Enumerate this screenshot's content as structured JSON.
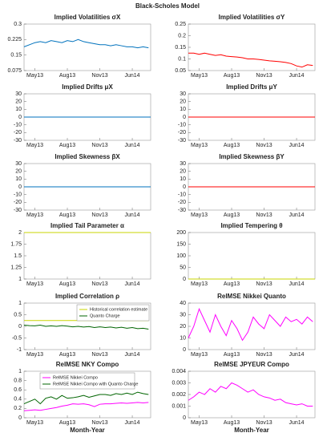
{
  "title": "Black-Scholes Model",
  "chart_data": [
    {
      "type": "line",
      "title": "Implied Volatilities σX",
      "x": [
        0,
        0.5,
        1,
        1.5,
        2,
        2.5,
        3,
        3.5,
        4,
        4.5,
        5,
        5.5,
        6,
        6.5,
        7,
        7.5,
        8,
        8.5,
        9,
        9.5,
        10,
        10.5,
        11,
        11.5
      ],
      "series": [
        {
          "color": "#0072bd",
          "values": [
            0.19,
            0.2,
            0.21,
            0.215,
            0.21,
            0.22,
            0.215,
            0.21,
            0.22,
            0.215,
            0.225,
            0.215,
            0.21,
            0.205,
            0.2,
            0.2,
            0.195,
            0.2,
            0.195,
            0.19,
            0.19,
            0.185,
            0.19,
            0.185
          ]
        }
      ],
      "xlim": [
        0,
        11.7
      ],
      "xticks": [
        {
          "value": 1,
          "label": "May13"
        },
        {
          "value": 4,
          "label": "Aug13"
        },
        {
          "value": 7,
          "label": "Nov13"
        },
        {
          "value": 10,
          "label": "Jun14"
        }
      ],
      "ylim": [
        0.075,
        0.3
      ],
      "yticks": [
        0.075,
        0.15,
        0.225,
        0.3
      ]
    },
    {
      "type": "line",
      "title": "Implied Volatilities σY",
      "x": [
        0,
        0.5,
        1,
        1.5,
        2,
        2.5,
        3,
        3.5,
        4,
        4.5,
        5,
        5.5,
        6,
        6.5,
        7,
        7.5,
        8,
        8.5,
        9,
        9.5,
        10,
        10.5,
        11,
        11.5
      ],
      "series": [
        {
          "color": "#ff0000",
          "values": [
            0.125,
            0.125,
            0.12,
            0.125,
            0.12,
            0.115,
            0.118,
            0.112,
            0.11,
            0.108,
            0.105,
            0.1,
            0.1,
            0.098,
            0.095,
            0.092,
            0.09,
            0.088,
            0.085,
            0.08,
            0.07,
            0.065,
            0.075,
            0.072
          ]
        }
      ],
      "xlim": [
        0,
        11.7
      ],
      "xticks": [
        {
          "value": 1,
          "label": "May13"
        },
        {
          "value": 4,
          "label": "Aug13"
        },
        {
          "value": 7,
          "label": "Nov13"
        },
        {
          "value": 10,
          "label": "Jun14"
        }
      ],
      "ylim": [
        0.05,
        0.25
      ],
      "yticks": [
        0.05,
        0.1,
        0.15,
        0.2,
        0.25
      ]
    },
    {
      "type": "line",
      "title": "Implied Drifts μX",
      "x": [
        0,
        11.7
      ],
      "series": [
        {
          "color": "#0072bd",
          "values": [
            0,
            0
          ]
        }
      ],
      "xlim": [
        0,
        11.7
      ],
      "xticks": [
        {
          "value": 1,
          "label": "May13"
        },
        {
          "value": 4,
          "label": "Aug13"
        },
        {
          "value": 7,
          "label": "Nov13"
        },
        {
          "value": 10,
          "label": "Jun14"
        }
      ],
      "ylim": [
        -30,
        30
      ],
      "yticks": [
        -30,
        -20,
        -10,
        0,
        10,
        20,
        30
      ]
    },
    {
      "type": "line",
      "title": "Implied Drifts μY",
      "x": [
        0,
        11.7
      ],
      "series": [
        {
          "color": "#ff0000",
          "values": [
            0,
            0
          ]
        }
      ],
      "xlim": [
        0,
        11.7
      ],
      "xticks": [
        {
          "value": 1,
          "label": "May13"
        },
        {
          "value": 4,
          "label": "Aug13"
        },
        {
          "value": 7,
          "label": "Nov13"
        },
        {
          "value": 10,
          "label": "Jun14"
        }
      ],
      "ylim": [
        -30,
        30
      ],
      "yticks": [
        -30,
        -20,
        -10,
        0,
        10,
        20,
        30
      ]
    },
    {
      "type": "line",
      "title": "Implied Skewness βX",
      "x": [
        0,
        11.7
      ],
      "series": [
        {
          "color": "#0072bd",
          "values": [
            0,
            0
          ]
        }
      ],
      "xlim": [
        0,
        11.7
      ],
      "xticks": [
        {
          "value": 1,
          "label": "May13"
        },
        {
          "value": 4,
          "label": "Aug13"
        },
        {
          "value": 7,
          "label": "Nov13"
        },
        {
          "value": 10,
          "label": "Jun14"
        }
      ],
      "ylim": [
        -30,
        30
      ],
      "yticks": [
        -30,
        -20,
        -10,
        0,
        10,
        20,
        30
      ]
    },
    {
      "type": "line",
      "title": "Implied Skewness βY",
      "x": [
        0,
        11.7
      ],
      "series": [
        {
          "color": "#ff0000",
          "values": [
            0,
            0
          ]
        }
      ],
      "xlim": [
        0,
        11.7
      ],
      "xticks": [
        {
          "value": 1,
          "label": "May13"
        },
        {
          "value": 4,
          "label": "Aug13"
        },
        {
          "value": 7,
          "label": "Nov13"
        },
        {
          "value": 10,
          "label": "Jun14"
        }
      ],
      "ylim": [
        -30,
        30
      ],
      "yticks": [
        -30,
        -20,
        -10,
        0,
        10,
        20,
        30
      ]
    },
    {
      "type": "line",
      "title": "Implied Tail Parameter α",
      "x": [
        0,
        11.7
      ],
      "series": [
        {
          "color": "#c8d400",
          "values": [
            2,
            2
          ]
        }
      ],
      "xlim": [
        0,
        11.7
      ],
      "xticks": [
        {
          "value": 1,
          "label": "May13"
        },
        {
          "value": 4,
          "label": "Aug13"
        },
        {
          "value": 7,
          "label": "Nov13"
        },
        {
          "value": 10,
          "label": "Jun14"
        }
      ],
      "ylim": [
        1,
        2
      ],
      "yticks": [
        1,
        1.25,
        1.5,
        1.75,
        2
      ]
    },
    {
      "type": "line",
      "title": "Implied Tempering θ",
      "x": [
        0,
        11.7
      ],
      "series": [
        {
          "color": "#c8d400",
          "values": [
            0,
            0
          ]
        }
      ],
      "xlim": [
        0,
        11.7
      ],
      "xticks": [
        {
          "value": 1,
          "label": "May13"
        },
        {
          "value": 4,
          "label": "Aug13"
        },
        {
          "value": 7,
          "label": "Nov13"
        },
        {
          "value": 10,
          "label": "Jun14"
        }
      ],
      "ylim": [
        0,
        200
      ],
      "yticks": [
        0,
        50,
        100,
        150,
        200
      ]
    },
    {
      "type": "line",
      "title": "Implied Correlation ρ",
      "x": [
        0,
        0.5,
        1,
        1.5,
        2,
        2.5,
        3,
        3.5,
        4,
        4.5,
        5,
        5.5,
        6,
        6.5,
        7,
        7.5,
        8,
        8.5,
        9,
        9.5,
        10,
        10.5,
        11,
        11.5
      ],
      "series": [
        {
          "name": "Historical correlation estimate",
          "color": "#c8d400",
          "values": [
            0.25,
            0.25,
            0.25,
            0.25,
            0.25,
            0.25,
            0.25,
            0.25,
            0.25,
            0.25,
            0.25,
            0.25,
            0.25,
            0.25,
            0.25,
            0.25,
            0.25,
            0.25,
            0.25,
            0.25,
            0.25,
            0.25,
            0.25,
            0.25
          ]
        },
        {
          "name": "Quanto Charge",
          "color": "#006400",
          "values": [
            0.05,
            0.03,
            0.02,
            0.05,
            0,
            0.02,
            0,
            0.03,
            0.01,
            -0.02,
            0,
            -0.03,
            -0.01,
            -0.05,
            -0.02,
            -0.05,
            -0.03,
            -0.07,
            -0.04,
            -0.08,
            -0.05,
            -0.1,
            -0.08,
            -0.12
          ]
        }
      ],
      "legend": "upper right",
      "xlim": [
        0,
        11.7
      ],
      "xticks": [
        {
          "value": 1,
          "label": "May13"
        },
        {
          "value": 4,
          "label": "Aug13"
        },
        {
          "value": 7,
          "label": "Nov13"
        },
        {
          "value": 10,
          "label": "Jun14"
        }
      ],
      "ylim": [
        -1,
        1
      ],
      "yticks": [
        -1,
        -0.5,
        0,
        0.5,
        1
      ]
    },
    {
      "type": "line",
      "title": "RelMSE Nikkei Quanto",
      "x": [
        0,
        0.5,
        1,
        1.5,
        2,
        2.5,
        3,
        3.5,
        4,
        4.5,
        5,
        5.5,
        6,
        6.5,
        7,
        7.5,
        8,
        8.5,
        9,
        9.5,
        10,
        10.5,
        11,
        11.5
      ],
      "series": [
        {
          "color": "#ff00ff",
          "values": [
            10,
            20,
            35,
            25,
            15,
            30,
            20,
            12,
            25,
            18,
            8,
            15,
            28,
            22,
            18,
            30,
            25,
            20,
            28,
            24,
            26,
            22,
            28,
            24
          ]
        }
      ],
      "xlim": [
        0,
        11.7
      ],
      "xticks": [
        {
          "value": 1,
          "label": "May13"
        },
        {
          "value": 4,
          "label": "Aug13"
        },
        {
          "value": 7,
          "label": "Nov13"
        },
        {
          "value": 10,
          "label": "Jun14"
        }
      ],
      "ylim": [
        0,
        40
      ],
      "yticks": [
        0,
        10,
        20,
        30,
        40
      ]
    },
    {
      "type": "line",
      "title": "RelMSE NKY Compo",
      "xlabel": "Month-Year",
      "x": [
        0,
        0.5,
        1,
        1.5,
        2,
        2.5,
        3,
        3.5,
        4,
        4.5,
        5,
        5.5,
        6,
        6.5,
        7,
        7.5,
        8,
        8.5,
        9,
        9.5,
        10,
        10.5,
        11,
        11.5
      ],
      "series": [
        {
          "name": "RelMSE Nikkei Compo",
          "color": "#ff00ff",
          "values": [
            0.15,
            0.16,
            0.17,
            0.16,
            0.18,
            0.2,
            0.22,
            0.25,
            0.27,
            0.3,
            0.29,
            0.3,
            0.28,
            0.24,
            0.29,
            0.3,
            0.3,
            0.31,
            0.32,
            0.31,
            0.32,
            0.33,
            0.32,
            0.33
          ]
        },
        {
          "name": "RelMSE Nikkei Compo with Quanto Charge",
          "color": "#006400",
          "values": [
            0.3,
            0.35,
            0.4,
            0.3,
            0.42,
            0.45,
            0.4,
            0.48,
            0.42,
            0.43,
            0.45,
            0.48,
            0.44,
            0.47,
            0.5,
            0.5,
            0.48,
            0.52,
            0.5,
            0.53,
            0.5,
            0.55,
            0.52,
            0.5
          ]
        }
      ],
      "legend": "upper center",
      "xlim": [
        0,
        11.7
      ],
      "xticks": [
        {
          "value": 1,
          "label": "May13"
        },
        {
          "value": 4,
          "label": "Aug13"
        },
        {
          "value": 7,
          "label": "Nov13"
        },
        {
          "value": 10,
          "label": "Jun14"
        }
      ],
      "ylim": [
        0,
        1
      ],
      "yticks": [
        0,
        0.2,
        0.4,
        0.6,
        0.8,
        1
      ]
    },
    {
      "type": "line",
      "title": "RelMSE JPYEUR Compo",
      "xlabel": "Month-Year",
      "x": [
        0,
        0.5,
        1,
        1.5,
        2,
        2.5,
        3,
        3.5,
        4,
        4.5,
        5,
        5.5,
        6,
        6.5,
        7,
        7.5,
        8,
        8.5,
        9,
        9.5,
        10,
        10.5,
        11,
        11.5
      ],
      "series": [
        {
          "color": "#ff00ff",
          "values": [
            0.0015,
            0.0018,
            0.0022,
            0.002,
            0.0025,
            0.0022,
            0.0027,
            0.0025,
            0.003,
            0.0028,
            0.0025,
            0.0022,
            0.0024,
            0.002,
            0.0018,
            0.0017,
            0.0015,
            0.0016,
            0.0013,
            0.0012,
            0.0011,
            0.0012,
            0.001,
            0.001
          ]
        }
      ],
      "xlim": [
        0,
        11.7
      ],
      "xticks": [
        {
          "value": 1,
          "label": "May13"
        },
        {
          "value": 4,
          "label": "Aug13"
        },
        {
          "value": 7,
          "label": "Nov13"
        },
        {
          "value": 10,
          "label": "Jun14"
        }
      ],
      "ylim": [
        0,
        0.004
      ],
      "yticks": [
        0,
        0.001,
        0.002,
        0.003,
        0.004
      ]
    }
  ]
}
